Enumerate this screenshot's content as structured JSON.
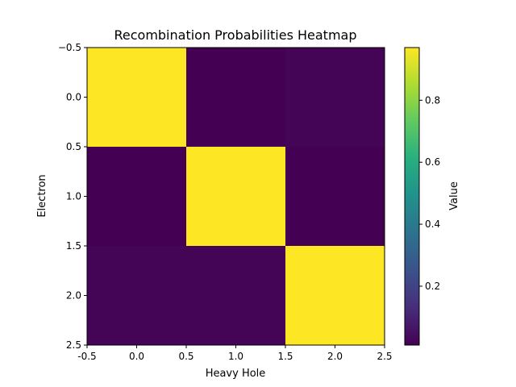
{
  "chart_data": {
    "type": "heatmap",
    "title": "Recombination Probabilities Heatmap",
    "xlabel": "Heavy Hole",
    "ylabel": "Electron",
    "colorbar_label": "Value",
    "colormap": "viridis",
    "xlim": [
      -0.5,
      2.5
    ],
    "ylim": [
      2.5,
      -0.5
    ],
    "x_ticks": [
      "-0.5",
      "0.0",
      "0.5",
      "1.0",
      "1.5",
      "2.0",
      "2.5"
    ],
    "y_ticks": [
      "−0.5",
      "0.0",
      "0.5",
      "1.0",
      "1.5",
      "2.0",
      "2.5"
    ],
    "x_tick_values": [
      -0.5,
      0.0,
      0.5,
      1.0,
      1.5,
      2.0,
      2.5
    ],
    "y_tick_values": [
      -0.5,
      0.0,
      0.5,
      1.0,
      1.5,
      2.0,
      2.5
    ],
    "matrix": [
      [
        0.97,
        0.01,
        0.02
      ],
      [
        0.01,
        0.97,
        0.01
      ],
      [
        0.02,
        0.02,
        0.97
      ]
    ],
    "colorbar_range": [
      0.01,
      0.97
    ],
    "colorbar_ticks": [
      "0.2",
      "0.4",
      "0.6",
      "0.8"
    ],
    "colorbar_tick_values": [
      0.2,
      0.4,
      0.6,
      0.8
    ],
    "grid": false
  }
}
